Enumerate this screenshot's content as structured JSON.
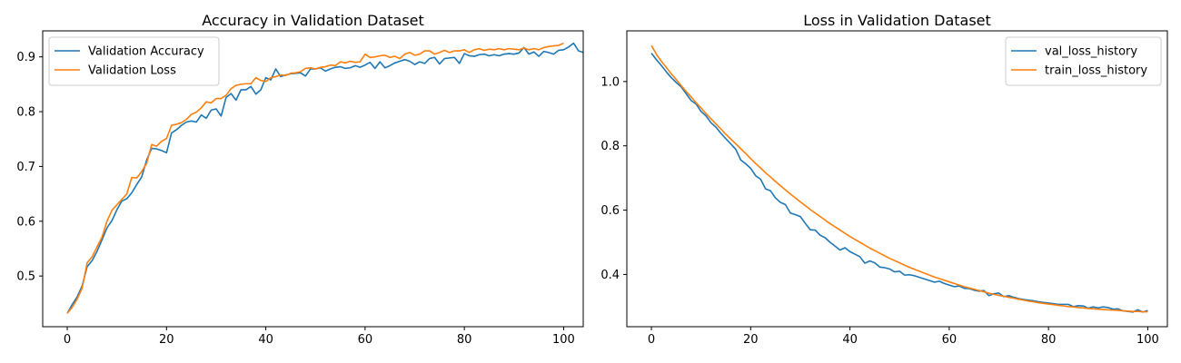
{
  "chart_data": [
    {
      "type": "line",
      "title": "Accuracy in Validation Dataset",
      "xlabel": "",
      "ylabel": "",
      "xlim": [
        -4.95,
        103.95
      ],
      "ylim": [
        0.4075,
        0.9475
      ],
      "xticks": [
        0,
        20,
        40,
        60,
        80,
        100
      ],
      "yticks": [
        0.5,
        0.6,
        0.7,
        0.8,
        0.9
      ],
      "ytick_labels": [
        "0.5",
        "0.6",
        "0.7",
        "0.8",
        "0.9"
      ],
      "grid": false,
      "legend": "upper-left",
      "series": [
        {
          "name": "Validation Accuracy",
          "color": "#1f77b4",
          "values": [
            0.432,
            0.448,
            0.462,
            0.482,
            0.517,
            0.528,
            0.545,
            0.566,
            0.588,
            0.601,
            0.621,
            0.637,
            0.641,
            0.652,
            0.667,
            0.681,
            0.712,
            0.733,
            0.732,
            0.729,
            0.725,
            0.761,
            0.767,
            0.775,
            0.781,
            0.783,
            0.781,
            0.794,
            0.788,
            0.803,
            0.805,
            0.792,
            0.826,
            0.833,
            0.821,
            0.84,
            0.84,
            0.846,
            0.832,
            0.84,
            0.862,
            0.858,
            0.878,
            0.864,
            0.867,
            0.869,
            0.87,
            0.871,
            0.865,
            0.878,
            0.878,
            0.88,
            0.874,
            0.878,
            0.881,
            0.882,
            0.879,
            0.88,
            0.884,
            0.881,
            0.885,
            0.89,
            0.879,
            0.891,
            0.88,
            0.884,
            0.889,
            0.892,
            0.895,
            0.892,
            0.886,
            0.891,
            0.888,
            0.897,
            0.899,
            0.887,
            0.897,
            0.898,
            0.899,
            0.888,
            0.906,
            0.902,
            0.901,
            0.904,
            0.905,
            0.902,
            0.904,
            0.902,
            0.905,
            0.906,
            0.905,
            0.907,
            0.917,
            0.905,
            0.909,
            0.901,
            0.91,
            0.908,
            0.905,
            0.912,
            0.913,
            0.918,
            0.925,
            0.911,
            0.908
          ]
        },
        {
          "name": "Validation Loss",
          "color": "#ff7f0e",
          "values": [
            0.432,
            0.443,
            0.458,
            0.478,
            0.524,
            0.535,
            0.553,
            0.571,
            0.6,
            0.62,
            0.63,
            0.64,
            0.65,
            0.68,
            0.679,
            0.691,
            0.706,
            0.74,
            0.737,
            0.746,
            0.751,
            0.775,
            0.777,
            0.78,
            0.786,
            0.795,
            0.799,
            0.807,
            0.818,
            0.816,
            0.824,
            0.824,
            0.83,
            0.842,
            0.848,
            0.85,
            0.851,
            0.851,
            0.862,
            0.857,
            0.855,
            0.862,
            0.864,
            0.867,
            0.866,
            0.87,
            0.871,
            0.873,
            0.879,
            0.88,
            0.878,
            0.881,
            0.882,
            0.885,
            0.884,
            0.891,
            0.889,
            0.892,
            0.89,
            0.891,
            0.905,
            0.899,
            0.9,
            0.902,
            0.903,
            0.899,
            0.901,
            0.897,
            0.905,
            0.908,
            0.903,
            0.905,
            0.911,
            0.911,
            0.905,
            0.908,
            0.912,
            0.908,
            0.911,
            0.911,
            0.913,
            0.908,
            0.913,
            0.915,
            0.912,
            0.914,
            0.913,
            0.915,
            0.913,
            0.915,
            0.914,
            0.913,
            0.916,
            0.913,
            0.915,
            0.913,
            0.917,
            0.919,
            0.92,
            0.921,
            0.925
          ]
        }
      ]
    },
    {
      "type": "line",
      "title": "Loss in Validation Dataset",
      "xlabel": "",
      "ylabel": "",
      "xlim": [
        -4.95,
        103.95
      ],
      "ylim": [
        0.2375,
        1.1575
      ],
      "xticks": [
        0,
        20,
        40,
        60,
        80,
        100
      ],
      "yticks": [
        0.4,
        0.6,
        0.8,
        1.0
      ],
      "ytick_labels": [
        "0.4",
        "0.6",
        "0.8",
        "1.0"
      ],
      "grid": false,
      "legend": "upper-right",
      "series": [
        {
          "name": "val_loss_history",
          "color": "#1f77b4",
          "values": [
            1.088,
            1.068,
            1.05,
            1.03,
            1.012,
            0.997,
            0.983,
            0.962,
            0.941,
            0.93,
            0.907,
            0.893,
            0.872,
            0.858,
            0.839,
            0.822,
            0.806,
            0.789,
            0.756,
            0.744,
            0.73,
            0.707,
            0.696,
            0.666,
            0.66,
            0.638,
            0.624,
            0.617,
            0.591,
            0.586,
            0.58,
            0.559,
            0.539,
            0.538,
            0.522,
            0.514,
            0.5,
            0.488,
            0.476,
            0.483,
            0.471,
            0.463,
            0.455,
            0.435,
            0.442,
            0.436,
            0.423,
            0.421,
            0.417,
            0.408,
            0.41,
            0.398,
            0.399,
            0.396,
            0.391,
            0.386,
            0.381,
            0.376,
            0.379,
            0.372,
            0.367,
            0.362,
            0.364,
            0.357,
            0.356,
            0.351,
            0.348,
            0.35,
            0.334,
            0.34,
            0.342,
            0.331,
            0.334,
            0.329,
            0.325,
            0.322,
            0.32,
            0.318,
            0.315,
            0.313,
            0.311,
            0.309,
            0.307,
            0.307,
            0.307,
            0.3,
            0.303,
            0.302,
            0.295,
            0.299,
            0.296,
            0.299,
            0.297,
            0.292,
            0.293,
            0.287,
            0.285,
            0.283,
            0.29,
            0.283,
            0.288
          ]
        },
        {
          "name": "train_loss_history",
          "color": "#ff7f0e",
          "values": [
            1.112,
            1.085,
            1.063,
            1.044,
            1.024,
            1.006,
            0.987,
            0.969,
            0.952,
            0.934,
            0.918,
            0.9,
            0.884,
            0.868,
            0.852,
            0.836,
            0.821,
            0.806,
            0.791,
            0.776,
            0.76,
            0.745,
            0.731,
            0.716,
            0.703,
            0.689,
            0.676,
            0.663,
            0.65,
            0.638,
            0.626,
            0.614,
            0.602,
            0.591,
            0.58,
            0.569,
            0.558,
            0.548,
            0.538,
            0.528,
            0.518,
            0.509,
            0.5,
            0.491,
            0.482,
            0.474,
            0.466,
            0.458,
            0.45,
            0.443,
            0.436,
            0.429,
            0.422,
            0.416,
            0.41,
            0.404,
            0.398,
            0.392,
            0.387,
            0.382,
            0.377,
            0.372,
            0.367,
            0.362,
            0.358,
            0.354,
            0.35,
            0.346,
            0.342,
            0.338,
            0.335,
            0.332,
            0.329,
            0.326,
            0.323,
            0.32,
            0.317,
            0.315,
            0.312,
            0.31,
            0.308,
            0.306,
            0.304,
            0.302,
            0.3,
            0.299,
            0.297,
            0.296,
            0.294,
            0.293,
            0.292,
            0.291,
            0.29,
            0.289,
            0.288,
            0.287,
            0.286,
            0.285,
            0.285,
            0.284,
            0.284
          ]
        }
      ]
    }
  ]
}
